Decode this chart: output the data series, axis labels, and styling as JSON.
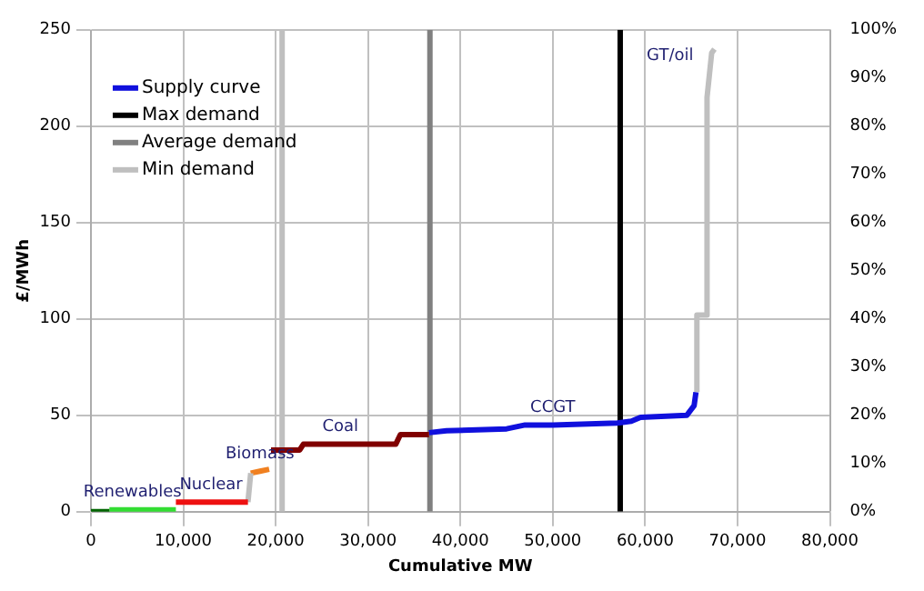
{
  "chart_data": {
    "type": "line",
    "xlabel": "Cumulative MW",
    "ylabel": "£/MWh",
    "xlim": [
      0,
      80000
    ],
    "xticks": [
      0,
      {
        "value": 10000,
        "label": "10,000"
      },
      {
        "value": 20000,
        "label": "20,000"
      },
      {
        "value": 30000,
        "label": "30,000"
      },
      {
        "value": 40000,
        "label": "40,000"
      },
      {
        "value": 50000,
        "label": "50,000"
      },
      {
        "value": 60000,
        "label": "60,000"
      },
      {
        "value": 70000,
        "label": "70,000"
      },
      {
        "value": 80000,
        "label": "80,000"
      }
    ],
    "ylim": [
      0,
      250
    ],
    "yticks": [
      0,
      50,
      100,
      150,
      200,
      250
    ],
    "y2lim": [
      0,
      100
    ],
    "y2ticks": [
      {
        "value": 0,
        "label": "0%"
      },
      {
        "value": 10,
        "label": "10%"
      },
      {
        "value": 20,
        "label": "20%"
      },
      {
        "value": 30,
        "label": "30%"
      },
      {
        "value": 40,
        "label": "40%"
      },
      {
        "value": 50,
        "label": "50%"
      },
      {
        "value": 60,
        "label": "60%"
      },
      {
        "value": 70,
        "label": "70%"
      },
      {
        "value": 80,
        "label": "80%"
      },
      {
        "value": 90,
        "label": "90%"
      },
      {
        "value": 100,
        "label": "100%"
      }
    ],
    "grid": true,
    "legend": "top left",
    "series": [
      {
        "color": "#006400",
        "x": [
          0,
          2000
        ],
        "values": [
          0,
          0
        ]
      },
      {
        "color": "#33dd33",
        "x": [
          2000,
          4500,
          9200
        ],
        "values": [
          1,
          1,
          1
        ]
      },
      {
        "color": "#ee1111",
        "x": [
          9200,
          13000,
          17000
        ],
        "values": [
          5,
          5,
          5
        ]
      },
      {
        "color": "#bfbfbf",
        "x": [
          17000,
          17300
        ],
        "values": [
          5,
          20
        ]
      },
      {
        "color": "#f08020",
        "x": [
          17300,
          18300,
          19300
        ],
        "values": [
          20,
          21,
          22
        ]
      },
      {
        "color": "#800000",
        "x": [
          19500,
          22600,
          23000,
          27000,
          33000,
          33500,
          36600
        ],
        "values": [
          32,
          32,
          35,
          35,
          35,
          40,
          40
        ]
      },
      {
        "name": "Supply curve",
        "color": "#1010dd",
        "x": [
          36600,
          38500,
          45000,
          47000,
          50000,
          57000,
          58500,
          59500,
          64500,
          65300,
          65500
        ],
        "values": [
          41,
          42,
          43,
          45,
          45,
          46,
          47,
          49,
          50,
          55,
          62
        ]
      },
      {
        "color": "#bfbfbf",
        "x": [
          65600,
          65600,
          66600,
          66700,
          67200,
          67500
        ],
        "values": [
          62,
          102,
          102,
          215,
          238,
          240
        ]
      },
      {
        "name": "Max demand",
        "color": "#000000",
        "x": [
          57300,
          57300
        ],
        "values": [
          0,
          250
        ]
      },
      {
        "name": "Average demand",
        "color": "#808080",
        "x": [
          36700,
          36700
        ],
        "values": [
          0,
          250
        ]
      },
      {
        "name": "Min demand",
        "color": "#bfbfbf",
        "x": [
          20700,
          20700
        ],
        "values": [
          0,
          250
        ]
      }
    ],
    "annotations": [
      {
        "text": "Renewables",
        "x": 4500,
        "y": 1
      },
      {
        "text": "Nuclear",
        "x": 13000,
        "y": 5
      },
      {
        "text": "Biomass",
        "x": 18300,
        "y": 21
      },
      {
        "text": "Coal",
        "x": 27000,
        "y": 35
      },
      {
        "text": "CCGT",
        "x": 50000,
        "y": 45
      },
      {
        "text": "GT/oil",
        "x": 67200,
        "y": 238
      }
    ]
  }
}
